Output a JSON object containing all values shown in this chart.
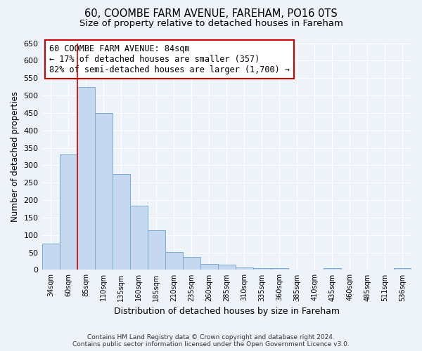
{
  "title": "60, COOMBE FARM AVENUE, FAREHAM, PO16 0TS",
  "subtitle": "Size of property relative to detached houses in Fareham",
  "xlabel": "Distribution of detached houses by size in Fareham",
  "ylabel": "Number of detached properties",
  "footer_line1": "Contains HM Land Registry data © Crown copyright and database right 2024.",
  "footer_line2": "Contains public sector information licensed under the Open Government Licence v3.0.",
  "annotation_line1": "60 COOMBE FARM AVENUE: 84sqm",
  "annotation_line2": "← 17% of detached houses are smaller (357)",
  "annotation_line3": "82% of semi-detached houses are larger (1,700) →",
  "bar_color": "#c5d8ef",
  "bar_edge_color": "#7aadd4",
  "marker_line_color": "#cc0000",
  "categories": [
    "34sqm",
    "60sqm",
    "85sqm",
    "110sqm",
    "135sqm",
    "160sqm",
    "185sqm",
    "210sqm",
    "235sqm",
    "260sqm",
    "285sqm",
    "310sqm",
    "335sqm",
    "360sqm",
    "385sqm",
    "410sqm",
    "435sqm",
    "460sqm",
    "485sqm",
    "511sqm",
    "536sqm"
  ],
  "values": [
    75,
    330,
    525,
    450,
    275,
    185,
    113,
    52,
    37,
    17,
    14,
    7,
    5,
    5,
    1,
    1,
    4,
    1,
    1,
    1,
    5
  ],
  "ylim": [
    0,
    650
  ],
  "yticks": [
    0,
    50,
    100,
    150,
    200,
    250,
    300,
    350,
    400,
    450,
    500,
    550,
    600,
    650
  ],
  "background_color": "#eef2f9",
  "axes_background": "#eef2f9",
  "grid_color": "#ffffff",
  "title_fontsize": 10.5,
  "subtitle_fontsize": 9.5,
  "ann_fontsize": 8.5
}
